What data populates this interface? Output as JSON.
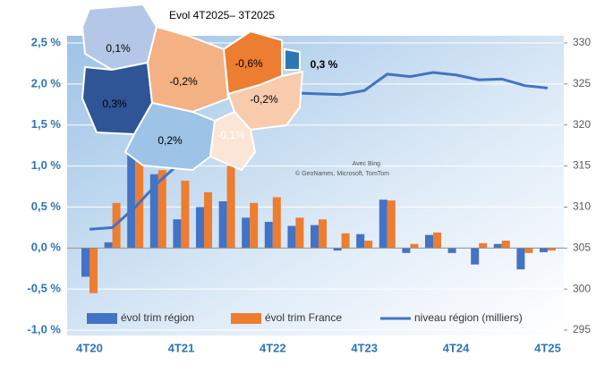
{
  "chart_data": {
    "type": "bar-line",
    "categories": [
      "4T20",
      null,
      null,
      null,
      "4T21",
      null,
      null,
      null,
      "4T22",
      null,
      null,
      null,
      "4T23",
      null,
      null,
      null,
      "4T24",
      null,
      null,
      null,
      "4T25"
    ],
    "series": [
      {
        "name": "évol trim région",
        "color": "#4472c4",
        "values": [
          -0.35,
          0.07,
          1.24,
          0.9,
          0.35,
          0.5,
          0.57,
          0.37,
          0.32,
          0.27,
          0.28,
          -0.03,
          0.17,
          0.59,
          -0.06,
          0.16,
          -0.06,
          -0.2,
          0.05,
          -0.26,
          -0.05
        ]
      },
      {
        "name": "évol trim France",
        "color": "#ed7d31",
        "values": [
          -0.55,
          0.55,
          1.17,
          0.95,
          0.82,
          0.68,
          1.0,
          0.55,
          0.62,
          0.37,
          0.35,
          0.18,
          0.09,
          0.58,
          0.05,
          0.19,
          0.0,
          0.06,
          0.09,
          -0.06,
          -0.03
        ]
      },
      {
        "name": "niveau région (milliers)",
        "color": "#4472c4",
        "axis": "y2",
        "values": [
          307.3,
          307.5,
          310,
          313,
          315.5,
          317.5,
          319.5,
          321,
          322.5,
          323.9,
          323.8,
          323.7,
          324.2,
          326.2,
          325.9,
          326.4,
          326.1,
          325.5,
          325.6,
          324.8,
          324.5
        ]
      }
    ],
    "ylim": [
      -1.0,
      2.5
    ],
    "yticks": [
      {
        "value": -1.0,
        "label": "-1,0 %"
      },
      {
        "value": -0.5,
        "label": "-0,5 %"
      },
      {
        "value": 0,
        "label": "0,0 %"
      },
      {
        "value": 0.5,
        "label": "0,5 %"
      },
      {
        "value": 1.0,
        "label": "1,0 %"
      },
      {
        "value": 1.5,
        "label": "1,5 %"
      },
      {
        "value": 2.0,
        "label": "2,0 %"
      },
      {
        "value": 2.5,
        "label": "2,5 %"
      }
    ],
    "y2lim": [
      295,
      330
    ],
    "y2ticks": [
      295,
      300,
      305,
      310,
      315,
      320,
      325,
      330
    ],
    "grid": true,
    "legend": "bottom"
  },
  "map": {
    "title": "Evol 4T2025– 3T2025",
    "regions": [
      "0,1%",
      "0,3%",
      "-0,2%",
      "-0,6%",
      "0,3 %",
      "-0,2%",
      "0,2%",
      "-0,1%"
    ],
    "credit": [
      "Avec Bing",
      "© GeoNames, Microsoft, TomTom"
    ]
  }
}
